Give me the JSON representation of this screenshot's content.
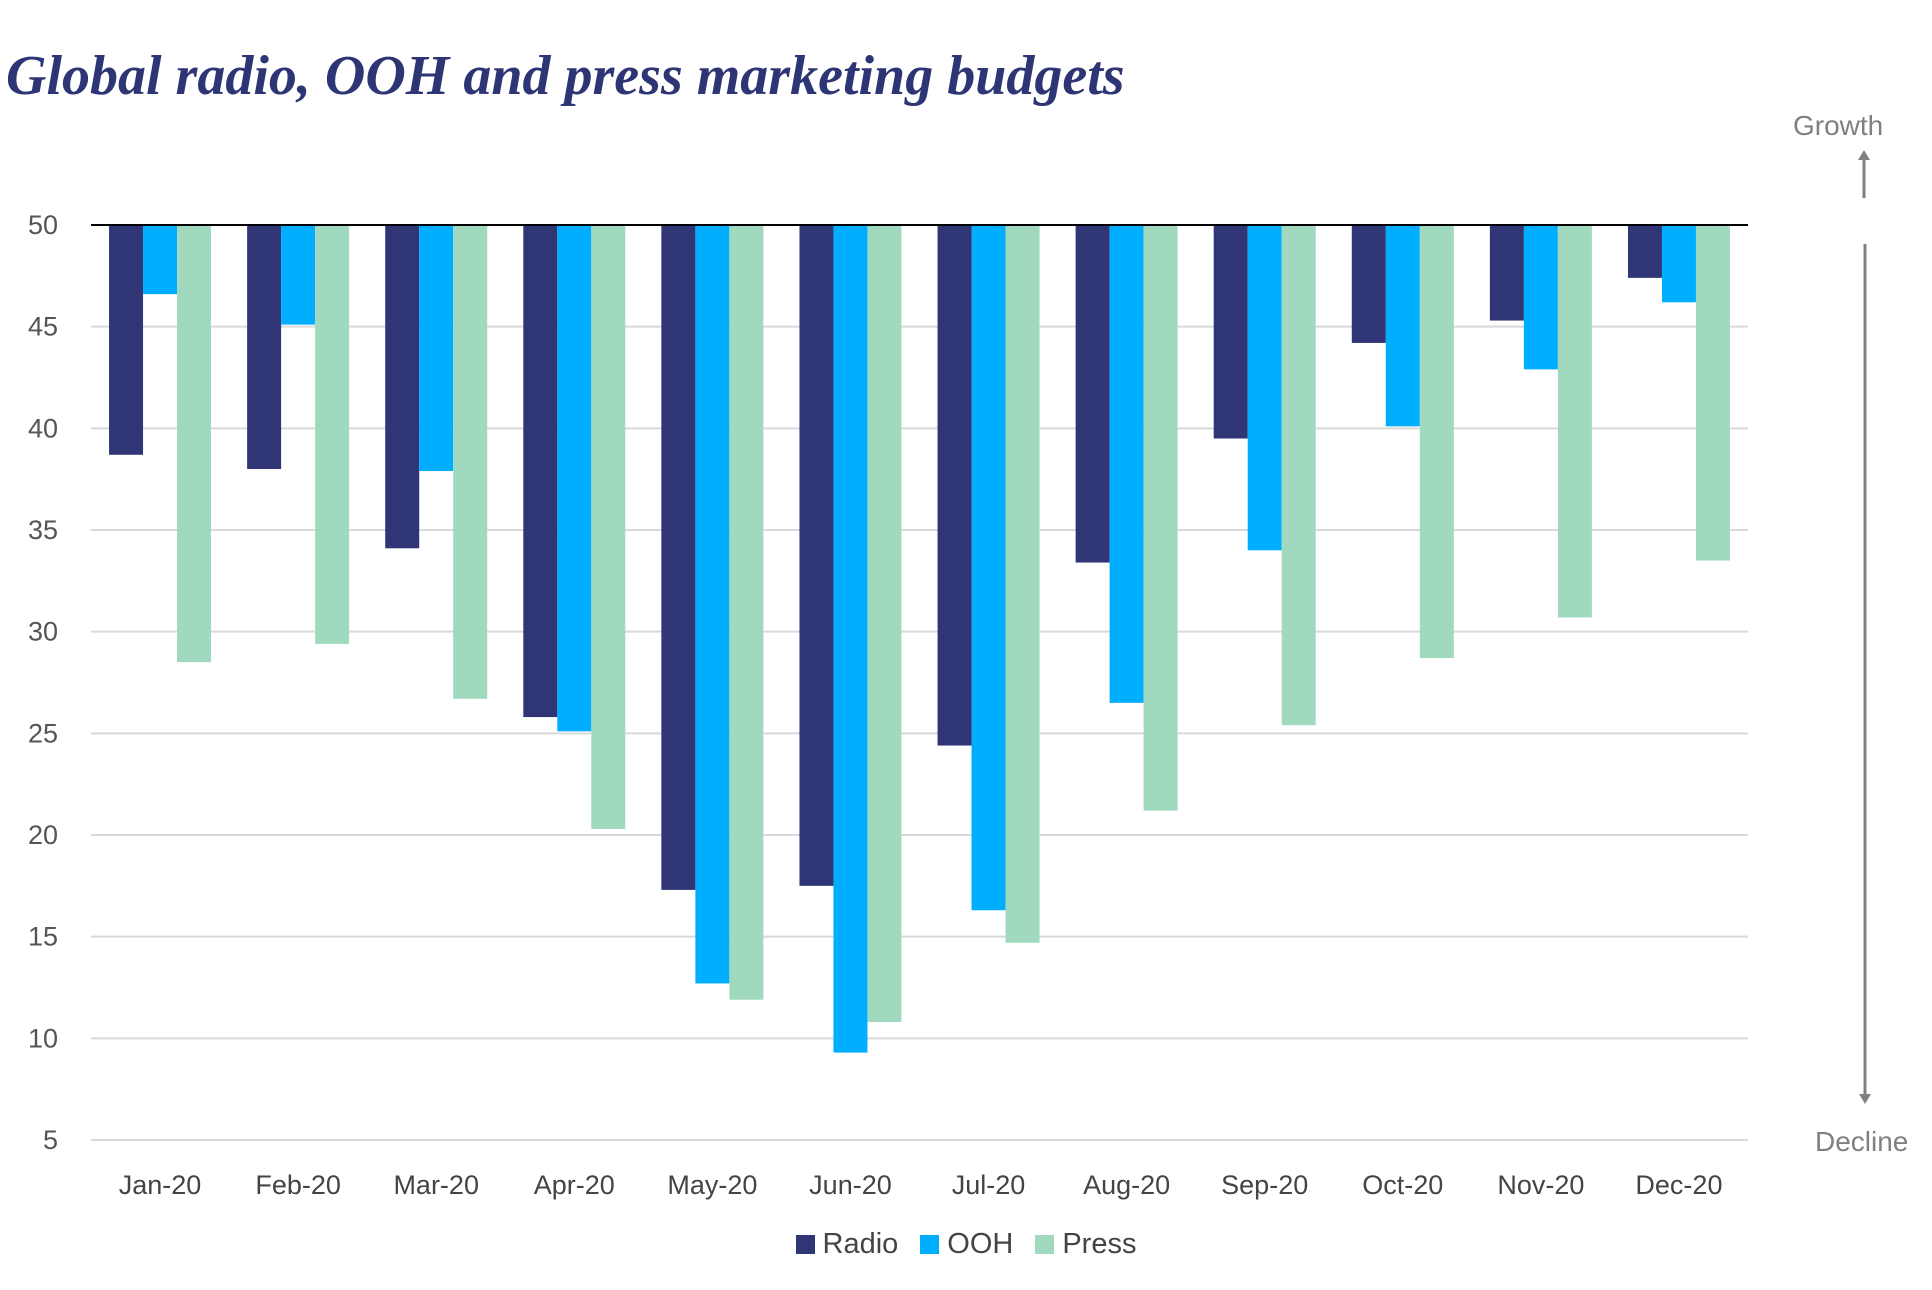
{
  "chart_data": {
    "type": "bar",
    "title": "Global radio, OOH and press marketing budgets",
    "xlabel": "",
    "ylabel": "",
    "ylim": [
      5,
      50
    ],
    "yticks": [
      50,
      45,
      40,
      35,
      30,
      25,
      20,
      15,
      10,
      5
    ],
    "baseline": 50,
    "grid": true,
    "legend_position": "bottom",
    "categories": [
      "Jan-20",
      "Feb-20",
      "Mar-20",
      "Apr-20",
      "May-20",
      "Jun-20",
      "Jul-20",
      "Aug-20",
      "Sep-20",
      "Oct-20",
      "Nov-20",
      "Dec-20"
    ],
    "series": [
      {
        "name": "Radio",
        "color": "#303575",
        "values": [
          38.7,
          38.0,
          34.1,
          25.8,
          17.3,
          17.5,
          24.4,
          33.4,
          39.5,
          44.2,
          45.3,
          47.4
        ]
      },
      {
        "name": "OOH",
        "color": "#00aeff",
        "values": [
          46.6,
          45.1,
          37.9,
          25.1,
          12.7,
          9.3,
          16.3,
          26.5,
          34.0,
          40.1,
          42.9,
          46.2
        ]
      },
      {
        "name": "Press",
        "color": "#a1d9be",
        "values": [
          28.5,
          29.4,
          26.7,
          20.3,
          11.9,
          10.8,
          14.7,
          21.2,
          25.4,
          28.7,
          30.7,
          33.5
        ]
      }
    ],
    "annotations": {
      "up": "Growth",
      "down": "Decline"
    }
  }
}
